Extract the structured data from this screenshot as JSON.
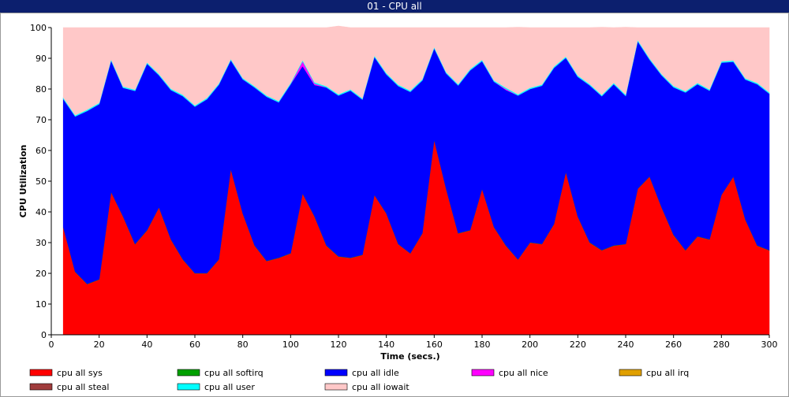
{
  "window": {
    "title": "01 - CPU all"
  },
  "chart_data": {
    "type": "area",
    "stacked": true,
    "xlabel": "Time (secs.)",
    "ylabel": "CPU Utilization",
    "xlim": [
      0,
      300
    ],
    "ylim": [
      0,
      100
    ],
    "x_ticks": [
      0,
      20,
      40,
      60,
      80,
      100,
      120,
      140,
      160,
      180,
      200,
      220,
      240,
      260,
      280,
      300
    ],
    "y_ticks": [
      0,
      10,
      20,
      30,
      40,
      50,
      60,
      70,
      80,
      90,
      100
    ],
    "grid": false,
    "legend_position": "bottom",
    "x": [
      5,
      10,
      15,
      20,
      25,
      30,
      35,
      40,
      45,
      50,
      55,
      60,
      65,
      70,
      75,
      80,
      85,
      90,
      95,
      100,
      105,
      110,
      115,
      120,
      125,
      130,
      135,
      140,
      145,
      150,
      155,
      160,
      165,
      170,
      175,
      180,
      185,
      190,
      195,
      200,
      205,
      210,
      215,
      220,
      225,
      230,
      235,
      240,
      245,
      250,
      255,
      260,
      265,
      270,
      275,
      280,
      285,
      290,
      295,
      300
    ],
    "series": [
      {
        "name": "cpu all sys",
        "color": "#ff0000",
        "values": [
          35,
          20.5,
          16.5,
          18,
          46.5,
          38.5,
          29.5,
          34,
          41.5,
          31,
          24.5,
          20,
          20,
          24.5,
          54,
          39.5,
          29,
          24,
          25,
          26.5,
          46,
          38.5,
          29,
          25.5,
          25,
          26,
          45.5,
          39.5,
          29.5,
          26.5,
          33,
          63.5,
          47.5,
          33,
          34,
          47.5,
          35,
          29,
          24.5,
          30,
          29.5,
          36,
          53,
          38.5,
          30,
          27.5,
          29,
          29.5,
          47.5,
          51.5,
          41.5,
          32.5,
          27.5,
          32,
          31,
          45.5,
          51.5,
          37.5,
          29,
          27.5
        ]
      },
      {
        "name": "cpu all softirq",
        "color": "#00a000",
        "values": [
          0.1,
          0.1,
          0.1,
          0.1,
          0.1,
          0.1,
          0.1,
          0.1,
          0.1,
          0.1,
          0.1,
          0.1,
          0.1,
          0.1,
          0.1,
          0.1,
          0.1,
          0.1,
          0.1,
          0.1,
          0.1,
          0.1,
          0.1,
          0.1,
          0.1,
          0.1,
          0.1,
          0.1,
          0.1,
          0.1,
          0.1,
          0.1,
          0.1,
          0.1,
          0.1,
          0.1,
          0.1,
          0.1,
          0.1,
          0.1,
          0.1,
          0.1,
          0.1,
          0.1,
          0.1,
          0.1,
          0.1,
          0.1,
          0.1,
          0.1,
          0.1,
          0.1,
          0.1,
          0.1,
          0.1,
          0.1,
          0.1,
          0.1,
          0.1,
          0.1
        ]
      },
      {
        "name": "cpu all idle",
        "color": "#0000ff",
        "values": [
          41.7,
          50.5,
          56.3,
          57,
          42.7,
          41.8,
          49.8,
          54.2,
          42.9,
          48.6,
          53.1,
          54.2,
          56.6,
          56.8,
          35.3,
          43.6,
          51.4,
          53.4,
          50.6,
          55,
          41.4,
          42.7,
          51.4,
          52.3,
          54.4,
          50.5,
          44.9,
          45.2,
          51.4,
          52.5,
          49.7,
          29.7,
          37.5,
          48.1,
          52,
          41.5,
          47.3,
          50.6,
          53.3,
          49.9,
          51.5,
          50.8,
          37.1,
          45.4,
          51.1,
          50.1,
          52.5,
          48.2,
          48,
          38,
          42.9,
          48,
          51.3,
          49.5,
          48.4,
          43,
          37.3,
          45.5,
          52.5,
          50.9
        ]
      },
      {
        "name": "cpu all nice",
        "color": "#ff00ff",
        "values": [
          0,
          0,
          0,
          0,
          0,
          0,
          0,
          0,
          0,
          0,
          0,
          0,
          0,
          0,
          0,
          0,
          0,
          0,
          0,
          0,
          1.5,
          0.5,
          0,
          0,
          0,
          0,
          0,
          0,
          0,
          0,
          0,
          0,
          0,
          0,
          0,
          0,
          0,
          0.3,
          0,
          0,
          0,
          0,
          0,
          0,
          0,
          0,
          0,
          0,
          0,
          0,
          0,
          0,
          0,
          0,
          0,
          0,
          0,
          0,
          0,
          0
        ]
      },
      {
        "name": "cpu all irq",
        "color": "#e0a000",
        "values": [
          0,
          0,
          0,
          0,
          0,
          0,
          0,
          0,
          0,
          0,
          0,
          0,
          0,
          0,
          0,
          0,
          0,
          0,
          0,
          0,
          0,
          0,
          0,
          0,
          0,
          0,
          0,
          0,
          0,
          0,
          0,
          0,
          0,
          0,
          0,
          0,
          0,
          0,
          0,
          0,
          0,
          0,
          0,
          0,
          0,
          0,
          0,
          0,
          0,
          0,
          0,
          0,
          0,
          0,
          0,
          0,
          0,
          0,
          0,
          0
        ]
      },
      {
        "name": "cpu all steal",
        "color": "#a03c3c",
        "values": [
          0,
          0,
          0,
          0,
          0,
          0,
          0,
          0,
          0,
          0,
          0,
          0,
          0,
          0,
          0,
          0,
          0,
          0,
          0,
          0,
          0,
          0,
          0,
          0,
          0,
          0,
          0,
          0,
          0,
          0,
          0,
          0,
          0,
          0,
          0,
          0,
          0,
          0,
          0,
          0,
          0,
          0,
          0,
          0,
          0,
          0,
          0,
          0,
          0,
          0,
          0,
          0,
          0,
          0,
          0,
          0,
          0,
          0,
          0,
          0
        ]
      },
      {
        "name": "cpu all user",
        "color": "#00ffff",
        "values": [
          0.4,
          0.4,
          0.4,
          0.4,
          0.4,
          0.4,
          0.4,
          0.4,
          0.4,
          0.4,
          0.4,
          0.4,
          0.4,
          0.4,
          0.4,
          0.4,
          0.4,
          0.4,
          0.4,
          0.4,
          0.4,
          0.4,
          0.4,
          0.4,
          0.4,
          0.4,
          0.4,
          0.4,
          0.4,
          0.4,
          0.4,
          0.4,
          0.4,
          0.4,
          0.4,
          0.4,
          0.4,
          0.4,
          0.4,
          0.4,
          0.4,
          0.4,
          0.4,
          0.4,
          0.4,
          0.4,
          0.4,
          0.4,
          0.4,
          0.4,
          0.4,
          0.4,
          0.4,
          0.4,
          0.4,
          0.4,
          0.4,
          0.4,
          0.4,
          0.4
        ]
      },
      {
        "name": "cpu all iowait",
        "color": "#ffc8c8",
        "values": [
          22.8,
          28.5,
          26.7,
          24.5,
          10.3,
          19.2,
          20.2,
          11.3,
          15.1,
          19.9,
          21.9,
          25.3,
          22.9,
          18.2,
          10.2,
          16.4,
          19.1,
          22.1,
          23.9,
          18,
          10.6,
          17.8,
          19.1,
          22.2,
          20.1,
          23,
          9.1,
          14.8,
          18.6,
          20.5,
          16.8,
          6.3,
          14.5,
          18.4,
          13.5,
          10.5,
          17.2,
          19.6,
          21.8,
          19.6,
          18.5,
          12.7,
          9.4,
          15.6,
          18.4,
          22,
          18,
          21.9,
          4,
          10,
          15.1,
          19,
          20.7,
          18,
          20.1,
          11,
          10.7,
          16.5,
          18,
          21.1
        ]
      }
    ]
  }
}
